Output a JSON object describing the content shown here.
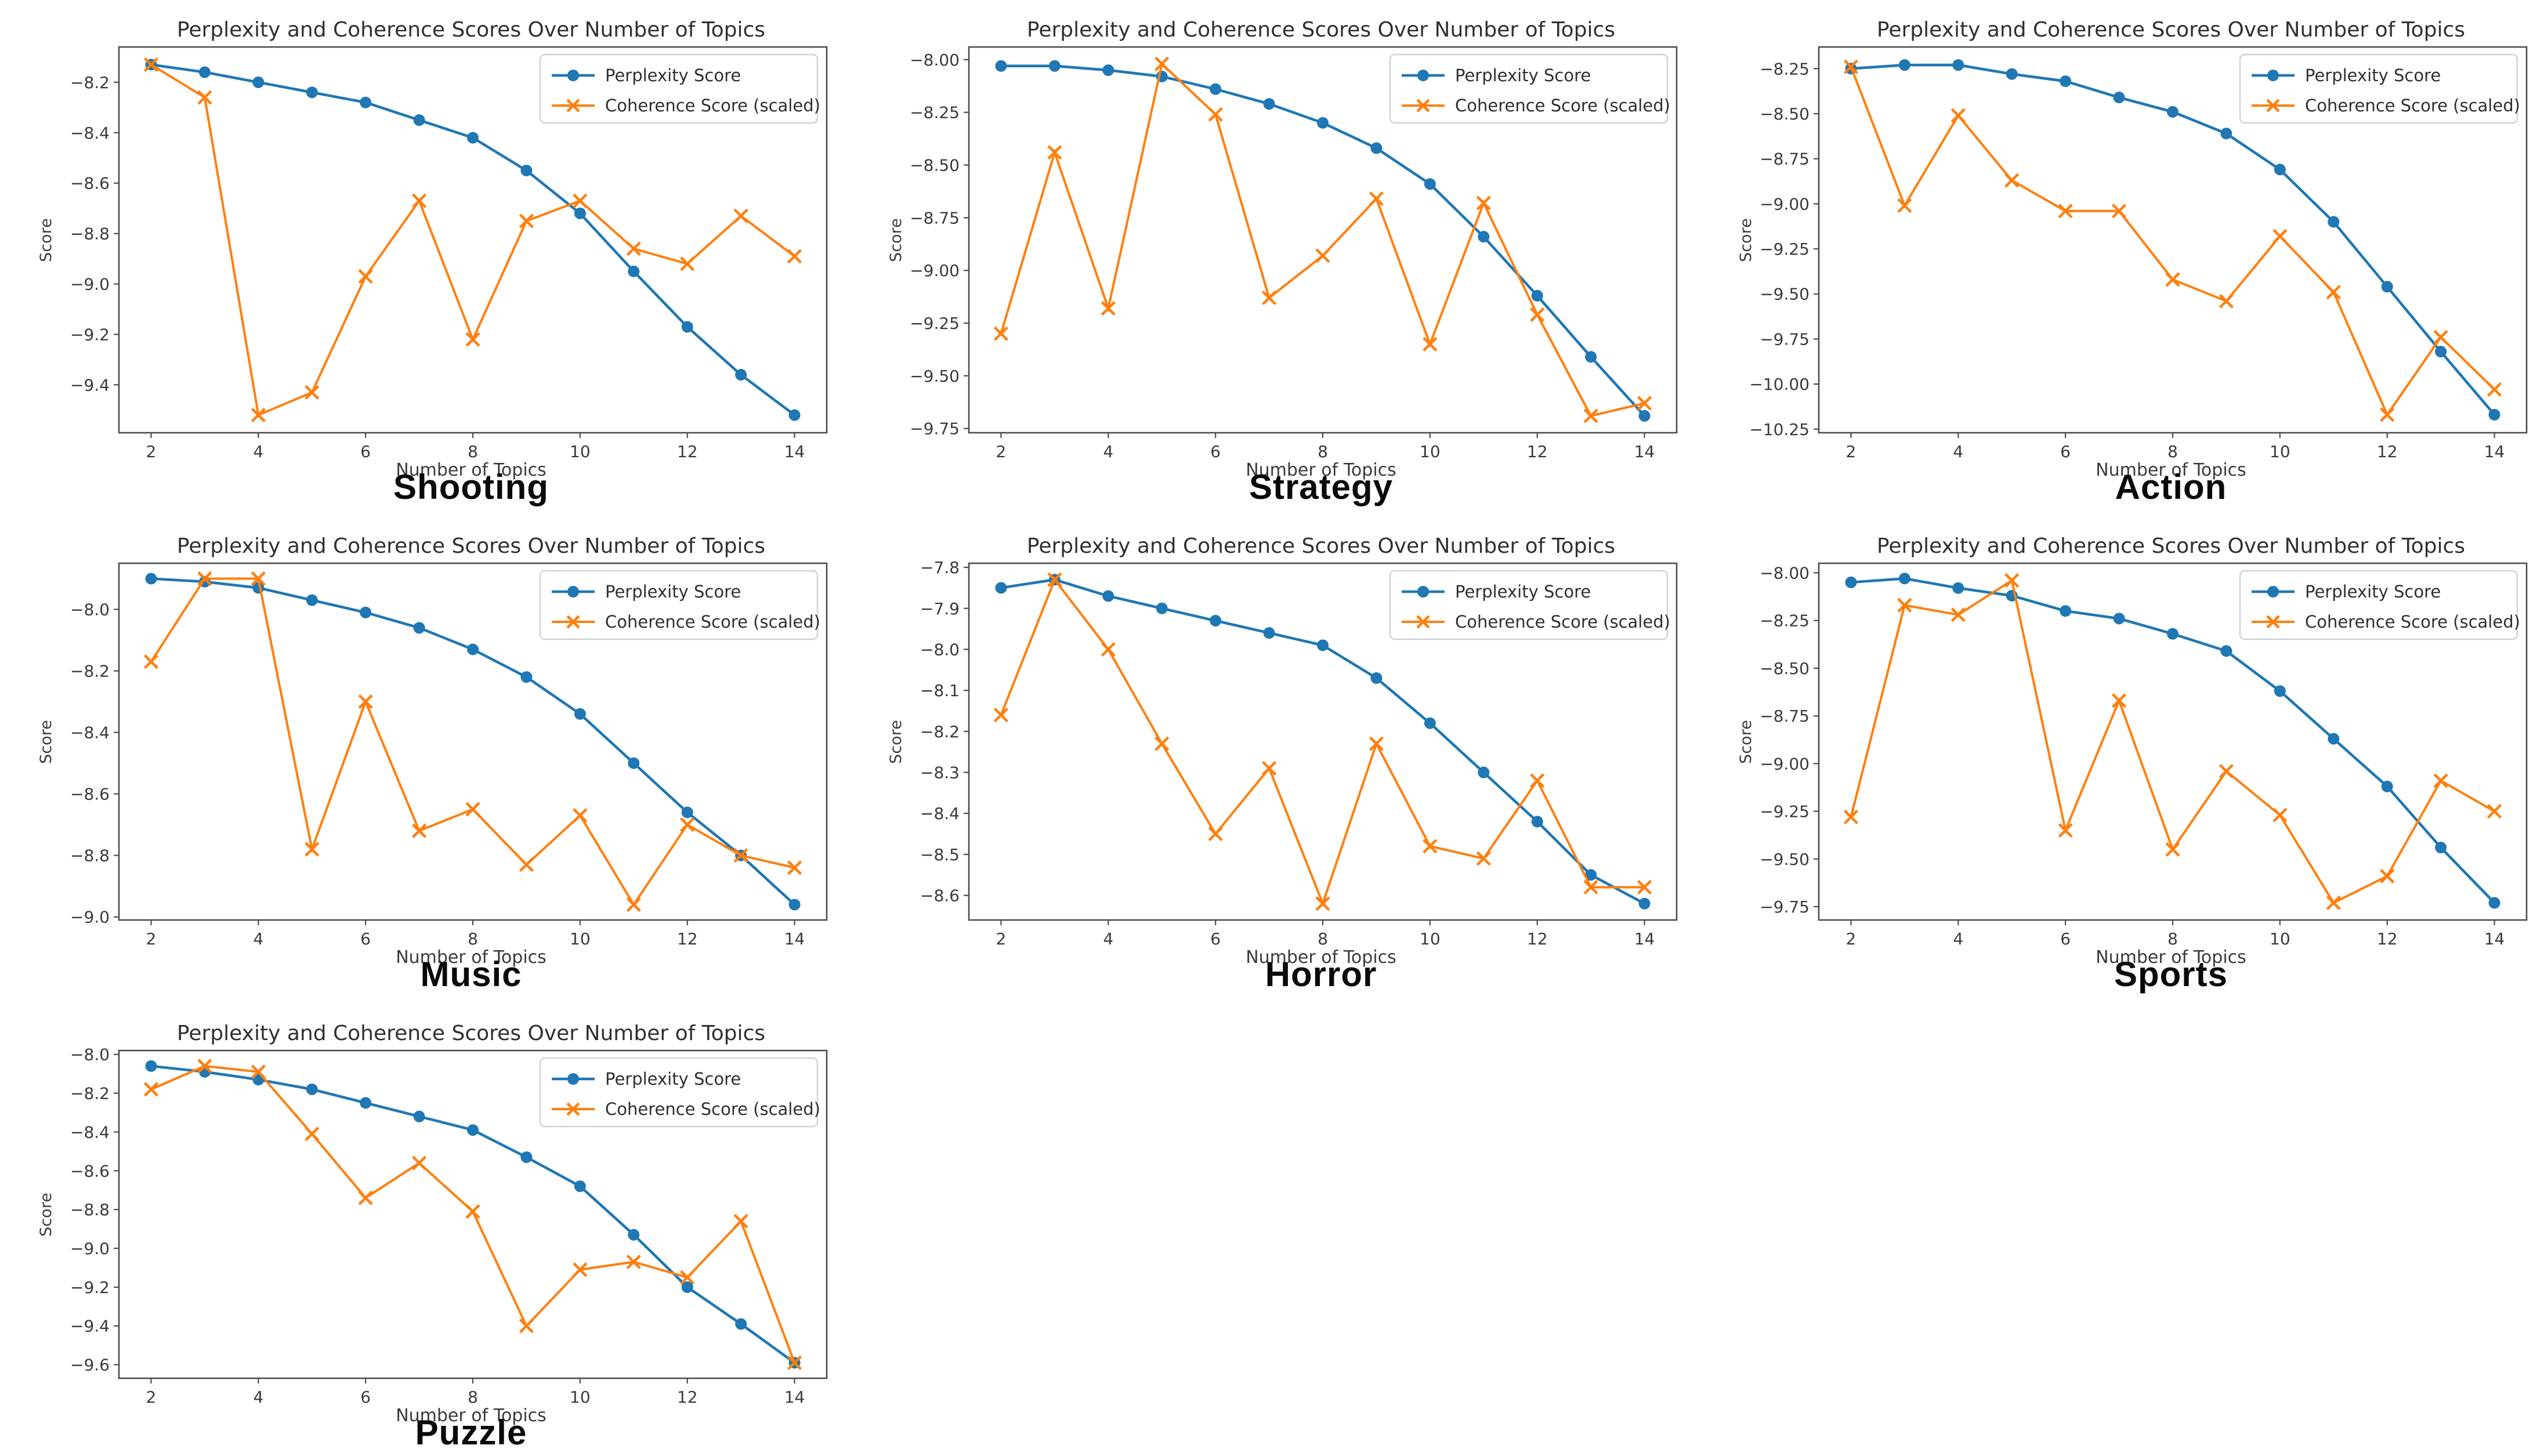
{
  "figure": {
    "title": "Perplexity and Coherence Scores Over Number of Topics",
    "xlabel": "Number of Topics",
    "ylabel": "Score",
    "legend": {
      "perplexity": "Perplexity Score",
      "coherence": "Coherence Score (scaled)"
    },
    "colors": {
      "perplexity": "#1f77b4",
      "coherence": "#ff7f0e",
      "axis": "#4d4d4d",
      "tick_text": "#3a3a3a",
      "legend_border": "#d2d2d2",
      "background": "#ffffff"
    },
    "x": [
      2,
      3,
      4,
      5,
      6,
      7,
      8,
      9,
      10,
      11,
      12,
      13,
      14
    ],
    "xticks": [
      2,
      4,
      6,
      8,
      10,
      12,
      14
    ],
    "xlim": [
      1.4,
      14.6
    ]
  },
  "chart_data": [
    {
      "type": "line",
      "category": "Shooting",
      "tick_decimals": 1,
      "ylim": [
        -9.59,
        -8.06
      ],
      "yticks": [
        -8.2,
        -8.4,
        -8.6,
        -8.8,
        -9.0,
        -9.2,
        -9.4
      ],
      "series": [
        {
          "name": "Perplexity Score",
          "values": [
            -8.13,
            -8.16,
            -8.2,
            -8.24,
            -8.28,
            -8.35,
            -8.42,
            -8.55,
            -8.72,
            -8.95,
            -9.17,
            -9.36,
            -9.52
          ]
        },
        {
          "name": "Coherence Score (scaled)",
          "values": [
            -8.13,
            -8.26,
            -9.52,
            -9.43,
            -8.97,
            -8.67,
            -9.22,
            -8.75,
            -8.67,
            -8.86,
            -8.92,
            -8.73,
            -8.89
          ]
        }
      ]
    },
    {
      "type": "line",
      "category": "Strategy",
      "tick_decimals": 2,
      "ylim": [
        -9.77,
        -7.94
      ],
      "yticks": [
        -8.0,
        -8.25,
        -8.5,
        -8.75,
        -9.0,
        -9.25,
        -9.5,
        -9.75
      ],
      "series": [
        {
          "name": "Perplexity Score",
          "values": [
            -8.03,
            -8.03,
            -8.05,
            -8.08,
            -8.14,
            -8.21,
            -8.3,
            -8.42,
            -8.59,
            -8.84,
            -9.12,
            -9.41,
            -9.69
          ]
        },
        {
          "name": "Coherence Score (scaled)",
          "values": [
            -9.3,
            -8.44,
            -9.18,
            -8.02,
            -8.26,
            -9.13,
            -8.93,
            -8.66,
            -9.35,
            -8.68,
            -9.21,
            -9.69,
            -9.63
          ]
        }
      ]
    },
    {
      "type": "line",
      "category": "Action",
      "tick_decimals": 2,
      "ylim": [
        -10.27,
        -8.13
      ],
      "yticks": [
        -8.25,
        -8.5,
        -8.75,
        -9.0,
        -9.25,
        -9.5,
        -9.75,
        -10.0,
        -10.25
      ],
      "series": [
        {
          "name": "Perplexity Score",
          "values": [
            -8.25,
            -8.23,
            -8.23,
            -8.28,
            -8.32,
            -8.41,
            -8.49,
            -8.61,
            -8.81,
            -9.1,
            -9.46,
            -9.82,
            -10.17
          ]
        },
        {
          "name": "Coherence Score (scaled)",
          "values": [
            -8.24,
            -9.01,
            -8.51,
            -8.87,
            -9.04,
            -9.04,
            -9.42,
            -9.54,
            -9.18,
            -9.49,
            -10.17,
            -9.74,
            -10.03
          ]
        }
      ]
    },
    {
      "type": "line",
      "category": "Music",
      "tick_decimals": 1,
      "ylim": [
        -9.01,
        -7.85
      ],
      "yticks": [
        -8.0,
        -8.2,
        -8.4,
        -8.6,
        -8.8,
        -9.0
      ],
      "series": [
        {
          "name": "Perplexity Score",
          "values": [
            -7.9,
            -7.91,
            -7.93,
            -7.97,
            -8.01,
            -8.06,
            -8.13,
            -8.22,
            -8.34,
            -8.5,
            -8.66,
            -8.8,
            -8.96
          ]
        },
        {
          "name": "Coherence Score (scaled)",
          "values": [
            -8.17,
            -7.9,
            -7.9,
            -8.78,
            -8.3,
            -8.72,
            -8.65,
            -8.83,
            -8.67,
            -8.96,
            -8.7,
            -8.8,
            -8.84
          ]
        }
      ]
    },
    {
      "type": "line",
      "category": "Horror",
      "tick_decimals": 1,
      "ylim": [
        -8.66,
        -7.79
      ],
      "yticks": [
        -7.8,
        -7.9,
        -8.0,
        -8.1,
        -8.2,
        -8.3,
        -8.4,
        -8.5,
        -8.6
      ],
      "series": [
        {
          "name": "Perplexity Score",
          "values": [
            -7.85,
            -7.83,
            -7.87,
            -7.9,
            -7.93,
            -7.96,
            -7.99,
            -8.07,
            -8.18,
            -8.3,
            -8.42,
            -8.55,
            -8.62
          ]
        },
        {
          "name": "Coherence Score (scaled)",
          "values": [
            -8.16,
            -7.83,
            -8.0,
            -8.23,
            -8.45,
            -8.29,
            -8.62,
            -8.23,
            -8.48,
            -8.51,
            -8.32,
            -8.58,
            -8.58
          ]
        }
      ]
    },
    {
      "type": "line",
      "category": "Sports",
      "tick_decimals": 2,
      "ylim": [
        -9.82,
        -7.95
      ],
      "yticks": [
        -8.0,
        -8.25,
        -8.5,
        -8.75,
        -9.0,
        -9.25,
        -9.5,
        -9.75
      ],
      "series": [
        {
          "name": "Perplexity Score",
          "values": [
            -8.05,
            -8.03,
            -8.08,
            -8.12,
            -8.2,
            -8.24,
            -8.32,
            -8.41,
            -8.62,
            -8.87,
            -9.12,
            -9.44,
            -9.73
          ]
        },
        {
          "name": "Coherence Score (scaled)",
          "values": [
            -9.28,
            -8.17,
            -8.22,
            -8.04,
            -9.35,
            -8.67,
            -9.45,
            -9.04,
            -9.27,
            -9.73,
            -9.59,
            -9.09,
            -9.25
          ]
        }
      ]
    },
    {
      "type": "line",
      "category": "Puzzle",
      "tick_decimals": 1,
      "ylim": [
        -9.67,
        -7.98
      ],
      "yticks": [
        -8.0,
        -8.2,
        -8.4,
        -8.6,
        -8.8,
        -9.0,
        -9.2,
        -9.4,
        -9.6
      ],
      "series": [
        {
          "name": "Perplexity Score",
          "values": [
            -8.06,
            -8.09,
            -8.13,
            -8.18,
            -8.25,
            -8.32,
            -8.39,
            -8.53,
            -8.68,
            -8.93,
            -9.2,
            -9.39,
            -9.59
          ]
        },
        {
          "name": "Coherence Score (scaled)",
          "values": [
            -8.18,
            -8.06,
            -8.09,
            -8.41,
            -8.74,
            -8.56,
            -8.81,
            -9.4,
            -9.11,
            -9.07,
            -9.15,
            -8.86,
            -9.59
          ]
        }
      ]
    }
  ]
}
